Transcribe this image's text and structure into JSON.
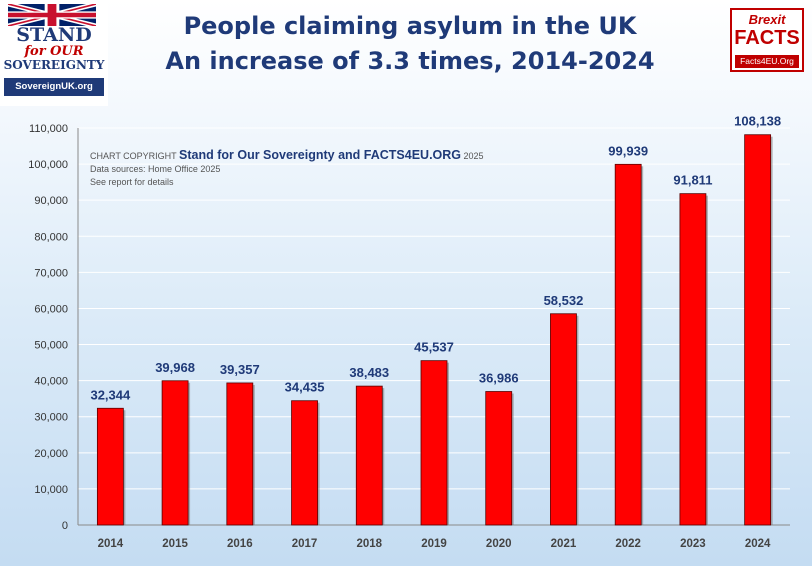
{
  "header": {
    "title_line1": "People claiming asylum in the UK",
    "title_line2": "An increase of 3.3 times, 2014-2024"
  },
  "logo_left": {
    "line1": "STAND",
    "line2": "for OUR",
    "line3": "SOVEREIGNTY",
    "url": "SovereignUK.org"
  },
  "logo_right": {
    "line1": "Brexit",
    "line2": "FACTS",
    "url": "Facts4EU.Org"
  },
  "copyright": {
    "prefix": "CHART COPYRIGHT",
    "owner": "Stand for Our Sovereignty and FACTS4EU.ORG",
    "year": "2025",
    "sources": "Data sources: Home Office 2025",
    "note": "See report for details"
  },
  "chart_data": {
    "type": "bar",
    "categories": [
      "2014",
      "2015",
      "2016",
      "2017",
      "2018",
      "2019",
      "2020",
      "2021",
      "2022",
      "2023",
      "2024"
    ],
    "values": [
      32344,
      39968,
      39357,
      34435,
      38483,
      45537,
      36986,
      58532,
      99939,
      91811,
      108138
    ],
    "value_labels": [
      "32,344",
      "39,968",
      "39,357",
      "34,435",
      "38,483",
      "45,537",
      "36,986",
      "58,532",
      "99,939",
      "91,811",
      "108,138"
    ],
    "y_ticks": [
      "0",
      "10,000",
      "20,000",
      "30,000",
      "40,000",
      "50,000",
      "60,000",
      "70,000",
      "80,000",
      "90,000",
      "100,000",
      "110,000"
    ],
    "ylim": [
      0,
      110000
    ],
    "grid": true,
    "bar_color": "#ff0000",
    "label_color": "#1f3a78"
  }
}
